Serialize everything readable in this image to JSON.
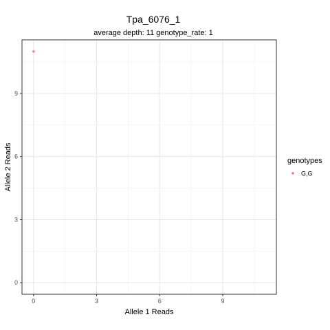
{
  "chart_data": {
    "type": "scatter",
    "title": "Tpa_6076_1",
    "subtitle": "average depth:  11  genotype_rate:  1",
    "xlabel": "Allele 1 Reads",
    "ylabel": "Allele 2 Reads",
    "xlim": [
      -0.55,
      11.55
    ],
    "ylim": [
      -0.55,
      11.55
    ],
    "x_ticks": [
      0,
      3,
      6,
      9
    ],
    "y_ticks": [
      0,
      3,
      6,
      9
    ],
    "grid": true,
    "legend": {
      "title": "genotypes",
      "position": "right"
    },
    "series": [
      {
        "name": "G,G",
        "color": "#F8766D",
        "points": [
          {
            "x": 0,
            "y": 11
          }
        ]
      }
    ]
  }
}
